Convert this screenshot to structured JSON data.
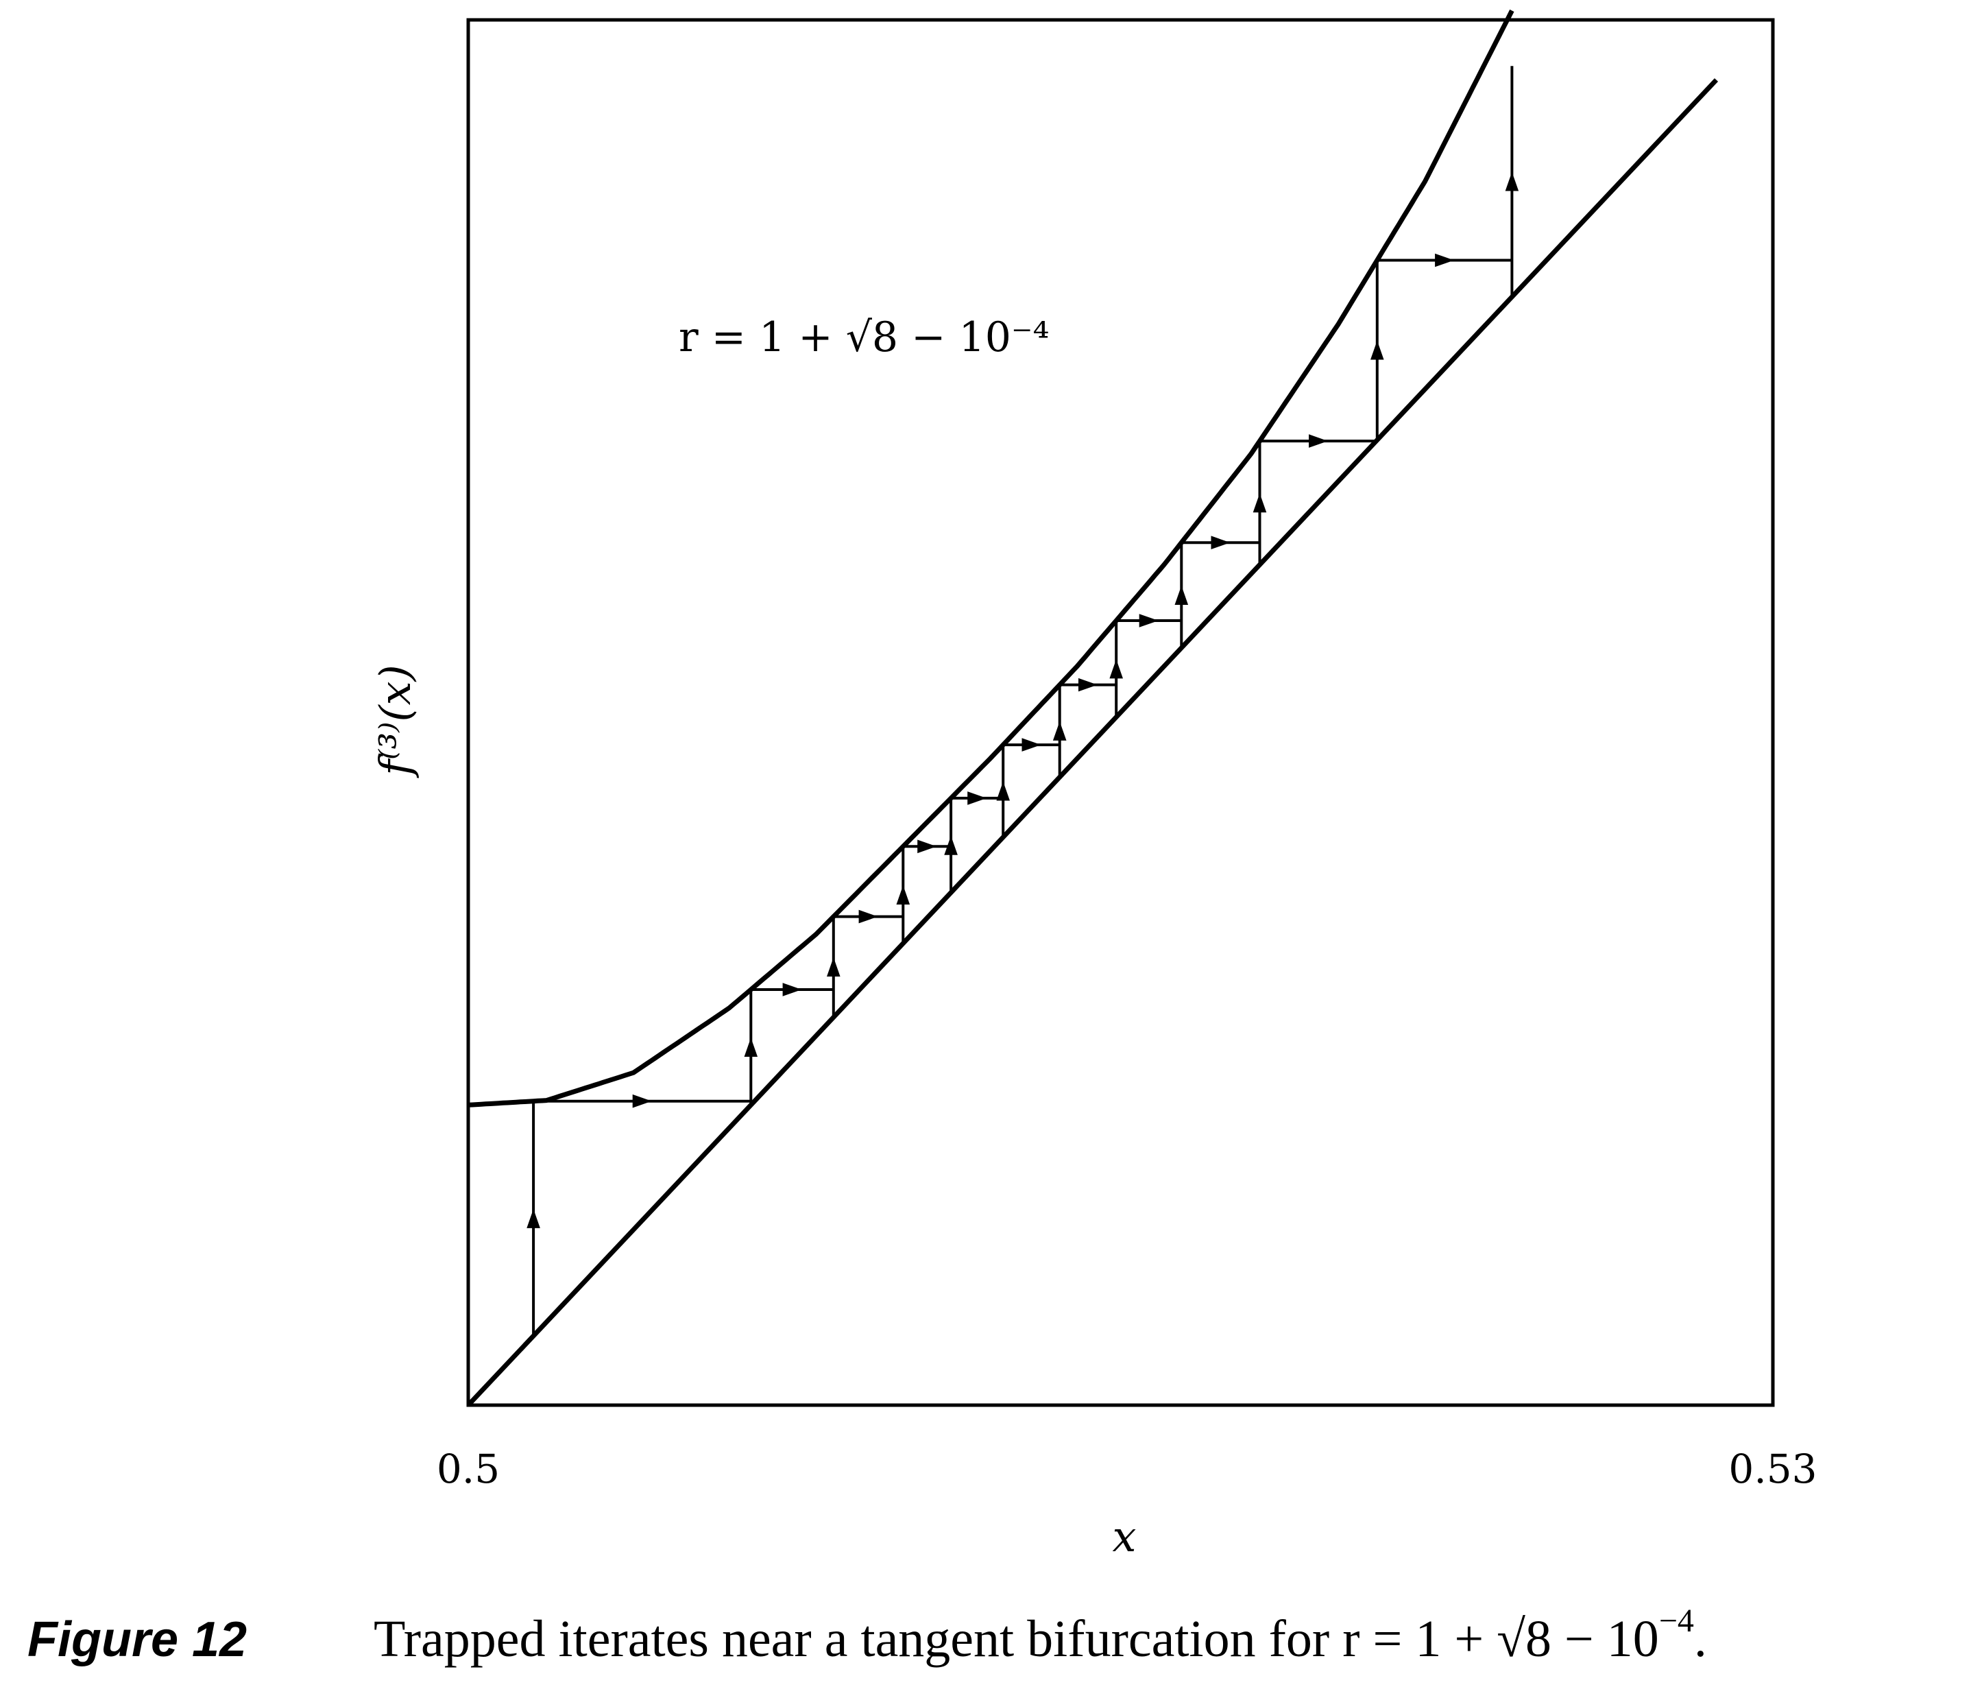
{
  "chart_data": {
    "type": "line",
    "title": "",
    "annotation": "r = 1 + √8 − 10⁻⁴",
    "xlabel": "x",
    "ylabel": "f⁽³⁾(x)",
    "xlim": [
      0.5,
      0.53
    ],
    "ylim": [
      0.5,
      0.53
    ],
    "x_tick_labels": [
      "0.5",
      "0.53"
    ],
    "grid": false,
    "series": [
      {
        "name": "f(3)(x)",
        "x": [
          0.5,
          0.5018,
          0.5038,
          0.506,
          0.508,
          0.51,
          0.512,
          0.514,
          0.516,
          0.518,
          0.52,
          0.522,
          0.524
        ],
        "y": [
          0.5065,
          0.5066,
          0.5072,
          0.5086,
          0.5102,
          0.5121,
          0.514,
          0.516,
          0.5182,
          0.5206,
          0.5234,
          0.5265,
          0.5302
        ]
      },
      {
        "name": "diagonal y = x",
        "x": [
          0.5,
          0.5287
        ],
        "y": [
          0.5,
          0.5287
        ]
      }
    ],
    "cobweb_x": [
      0.5015,
      0.5065,
      0.5084,
      0.51,
      0.5111,
      0.5123,
      0.5136,
      0.5149,
      0.5164,
      0.5182,
      0.5209,
      0.524
    ],
    "cobweb_start_y": 0.5015,
    "cobweb_end_y": 0.529
  },
  "caption": {
    "label": "Figure 12",
    "text_prefix": "Trapped iterates near a tangent bifurcation for r = 1 + √8 − 10",
    "exponent": "−4",
    "suffix": "."
  }
}
